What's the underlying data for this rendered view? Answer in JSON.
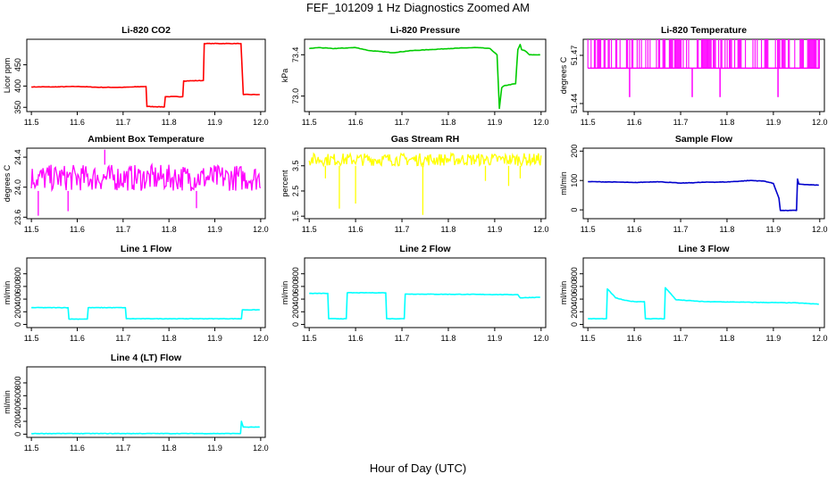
{
  "title": "FEF_101209  1 Hz Diagnostics Zoomed AM",
  "xlabel": "Hour of Day (UTC)",
  "chart_data": [
    {
      "type": "line",
      "title": "Li-820 CO2",
      "ylabel": "Licor ppm",
      "color": "#ff0000",
      "xlim": [
        11.5,
        12.0
      ],
      "ylim": [
        340,
        510
      ],
      "yticks": [
        "350",
        "400",
        "450"
      ],
      "xticks": [
        "11.5",
        "11.6",
        "11.7",
        "11.8",
        "11.9",
        "12.0"
      ],
      "series": [
        {
          "x": [
            11.5,
            11.55,
            11.6,
            11.65,
            11.7,
            11.75,
            11.752,
            11.79,
            11.792,
            11.83,
            11.832,
            11.875,
            11.877,
            11.957,
            11.962,
            11.998
          ],
          "values": [
            398,
            398,
            399,
            397,
            397,
            399,
            352,
            351,
            375,
            375,
            412,
            413,
            500,
            500,
            380,
            380
          ]
        }
      ]
    },
    {
      "type": "line",
      "title": "Li-820 Pressure",
      "ylabel": "kPa",
      "color": "#00cc00",
      "xlim": [
        11.5,
        12.0
      ],
      "ylim": [
        72.85,
        73.55
      ],
      "yticks": [
        "73.0",
        "73.4"
      ],
      "xticks": [
        "11.5",
        "11.6",
        "11.7",
        "11.8",
        "11.9",
        "12.0"
      ],
      "series": [
        {
          "x": [
            11.5,
            11.52,
            11.55,
            11.6,
            11.63,
            11.68,
            11.72,
            11.76,
            11.8,
            11.86,
            11.89,
            11.905,
            11.91,
            11.915,
            11.92,
            11.945,
            11.95,
            11.955,
            11.958,
            11.965,
            11.975,
            11.998
          ],
          "values": [
            73.46,
            73.47,
            73.46,
            73.47,
            73.44,
            73.42,
            73.44,
            73.45,
            73.46,
            73.47,
            73.46,
            73.4,
            72.88,
            73.08,
            73.1,
            73.12,
            73.45,
            73.5,
            73.45,
            73.44,
            73.4,
            73.4
          ]
        }
      ]
    },
    {
      "type": "line",
      "title": "Li-820 Temperature",
      "ylabel": "degrees C",
      "color": "#ff00ff",
      "xlim": [
        11.5,
        12.0
      ],
      "ylim": [
        51.435,
        51.48
      ],
      "yticks": [
        "51.44",
        "51.47"
      ],
      "xticks": [
        "11.5",
        "11.6",
        "11.7",
        "11.8",
        "11.9",
        "12.0"
      ],
      "baseline": 51.462,
      "high": 51.48,
      "dips": [
        {
          "x": 11.59,
          "value": 51.444
        },
        {
          "x": 11.725,
          "value": 51.444
        },
        {
          "x": 11.785,
          "value": 51.444
        },
        {
          "x": 11.91,
          "value": 51.444
        }
      ]
    },
    {
      "type": "line",
      "title": "Ambient Box Temperature",
      "ylabel": "degrees C",
      "color": "#ff00ff",
      "xlim": [
        11.5,
        12.0
      ],
      "ylim": [
        23.58,
        24.52
      ],
      "yticks": [
        "23.6",
        "24.0",
        "24.4"
      ],
      "xticks": [
        "11.5",
        "11.6",
        "11.7",
        "11.8",
        "11.9",
        "12.0"
      ],
      "band": [
        23.95,
        24.3
      ],
      "extremes": [
        {
          "x": 11.515,
          "value": 23.62
        },
        {
          "x": 11.66,
          "value": 24.5
        },
        {
          "x": 11.58,
          "value": 23.68
        },
        {
          "x": 11.86,
          "value": 23.72
        }
      ]
    },
    {
      "type": "line",
      "title": "Gas Stream RH",
      "ylabel": "percent",
      "color": "#ffff00",
      "xlim": [
        11.5,
        12.0
      ],
      "ylim": [
        1.4,
        4.2
      ],
      "yticks": [
        "1.5",
        "2.5",
        "3.5"
      ],
      "xticks": [
        "11.5",
        "11.6",
        "11.7",
        "11.8",
        "11.9",
        "12.0"
      ],
      "band": [
        3.5,
        4.0
      ],
      "dips": [
        {
          "x": 11.565,
          "value": 1.8
        },
        {
          "x": 11.6,
          "value": 2.0
        },
        {
          "x": 11.745,
          "value": 1.55
        },
        {
          "x": 11.535,
          "value": 3.0
        },
        {
          "x": 11.88,
          "value": 2.9
        },
        {
          "x": 11.93,
          "value": 2.7
        },
        {
          "x": 11.955,
          "value": 3.0
        }
      ]
    },
    {
      "type": "line",
      "title": "Sample Flow",
      "ylabel": "ml/min",
      "color": "#0000cc",
      "xlim": [
        11.5,
        12.0
      ],
      "ylim": [
        -30,
        210
      ],
      "yticks": [
        "0",
        "100",
        "200"
      ],
      "xticks": [
        "11.5",
        "11.6",
        "11.7",
        "11.8",
        "11.9",
        "12.0"
      ],
      "series": [
        {
          "x": [
            11.5,
            11.55,
            11.6,
            11.65,
            11.7,
            11.75,
            11.8,
            11.85,
            11.88,
            11.9,
            11.912,
            11.915,
            11.95,
            11.952,
            11.955,
            11.97,
            11.998
          ],
          "values": [
            96,
            95,
            93,
            96,
            91,
            94,
            95,
            100,
            98,
            90,
            40,
            -2,
            -2,
            105,
            88,
            86,
            84
          ]
        }
      ]
    },
    {
      "type": "line",
      "title": "Line 1 Flow",
      "ylabel": "ml/min",
      "color": "#00ffff",
      "xlim": [
        11.5,
        12.0
      ],
      "ylim": [
        -50,
        1050
      ],
      "yticks": [
        "0",
        "200",
        "400",
        "600",
        "800"
      ],
      "xticks": [
        "11.5",
        "11.6",
        "11.7",
        "11.8",
        "11.9",
        "12.0"
      ],
      "series": [
        {
          "x": [
            11.5,
            11.58,
            11.582,
            11.622,
            11.624,
            11.705,
            11.707,
            11.958,
            11.96,
            11.998
          ],
          "values": [
            265,
            265,
            85,
            85,
            265,
            265,
            90,
            90,
            230,
            230
          ]
        }
      ]
    },
    {
      "type": "line",
      "title": "Line 2 Flow",
      "ylabel": "ml/min",
      "color": "#00ffff",
      "xlim": [
        11.5,
        12.0
      ],
      "ylim": [
        -50,
        1050
      ],
      "yticks": [
        "0",
        "200",
        "400",
        "600",
        "800"
      ],
      "xticks": [
        "11.5",
        "11.6",
        "11.7",
        "11.8",
        "11.9",
        "12.0"
      ],
      "series": [
        {
          "x": [
            11.5,
            11.54,
            11.542,
            11.58,
            11.582,
            11.665,
            11.667,
            11.705,
            11.707,
            11.95,
            11.955,
            11.998
          ],
          "values": [
            490,
            490,
            90,
            90,
            500,
            500,
            90,
            90,
            480,
            470,
            420,
            430
          ]
        }
      ]
    },
    {
      "type": "line",
      "title": "Line 3 Flow",
      "ylabel": "ml/min",
      "color": "#00ffff",
      "xlim": [
        11.5,
        12.0
      ],
      "ylim": [
        -50,
        1050
      ],
      "yticks": [
        "0",
        "200",
        "400",
        "600",
        "800"
      ],
      "xticks": [
        "11.5",
        "11.6",
        "11.7",
        "11.8",
        "11.9",
        "12.0"
      ],
      "series": [
        {
          "x": [
            11.5,
            11.54,
            11.542,
            11.56,
            11.58,
            11.6,
            11.622,
            11.624,
            11.665,
            11.667,
            11.69,
            11.75,
            11.85,
            11.95,
            11.998
          ],
          "values": [
            90,
            90,
            560,
            420,
            380,
            360,
            360,
            90,
            90,
            580,
            390,
            360,
            350,
            340,
            320
          ]
        }
      ]
    },
    {
      "type": "line",
      "title": "Line 4 (LT) Flow",
      "ylabel": "ml/min",
      "color": "#00ffff",
      "xlim": [
        11.5,
        12.0
      ],
      "ylim": [
        -50,
        1050
      ],
      "yticks": [
        "0",
        "200",
        "400",
        "600",
        "800"
      ],
      "xticks": [
        "11.5",
        "11.6",
        "11.7",
        "11.8",
        "11.9",
        "12.0"
      ],
      "series": [
        {
          "x": [
            11.5,
            11.6,
            11.7,
            11.8,
            11.9,
            11.956,
            11.958,
            11.962,
            11.998
          ],
          "values": [
            10,
            10,
            10,
            10,
            10,
            10,
            200,
            110,
            110
          ]
        }
      ]
    }
  ]
}
